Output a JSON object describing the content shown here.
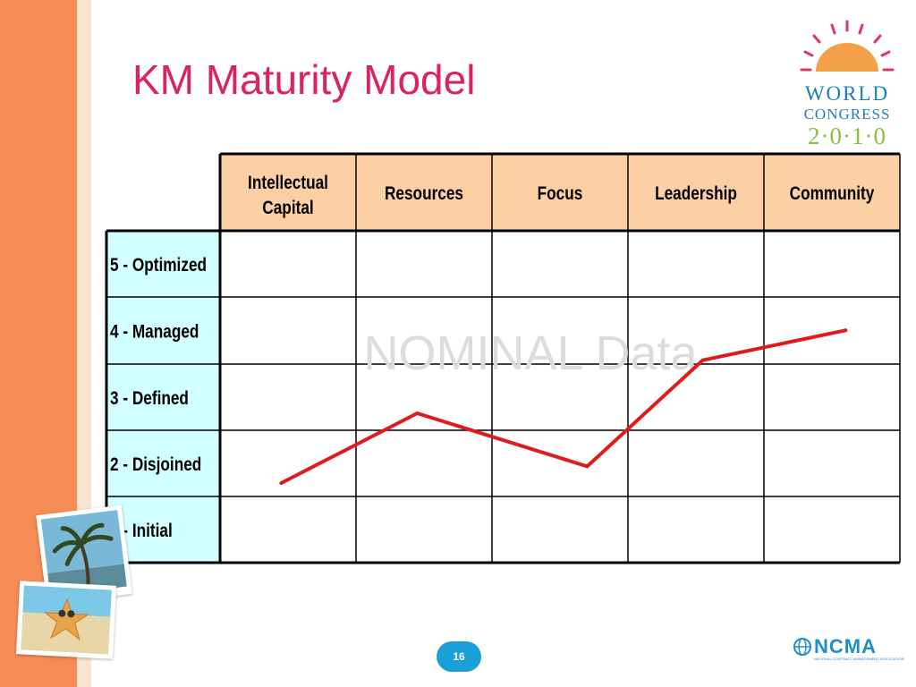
{
  "slide": {
    "title": "KM Maturity Model",
    "page_number": "16",
    "accent_color": "#d9245f",
    "side_strip_color": "#f58c55"
  },
  "logo": {
    "line1": "WORLD",
    "line2": "CONGRESS",
    "line3": "2·0·1·0",
    "sun_color": "#f2a14a",
    "text_color": "#1e7fb0",
    "year_color": "#8fbe3c"
  },
  "footer_logo": {
    "name": "NCMA",
    "tagline": "NATIONAL CONTRACT MANAGEMENT ASSOCIATION",
    "icon": "globe-icon",
    "color": "#1d8fc8"
  },
  "chart_data": {
    "type": "line",
    "categories": [
      "Intellectual Capital",
      "Resources",
      "Focus",
      "Leadership",
      "Community"
    ],
    "row_labels": [
      "5 - Optimized",
      "4 - Managed",
      "3 - Defined",
      "2 - Disjoined",
      "1 - Initial"
    ],
    "watermark": "NOMINAL Data",
    "series": [
      {
        "color": "#e01b1b",
        "points": [
          {
            "x": 0.45,
            "y": 1.7
          },
          {
            "x": 1.45,
            "y": 2.75
          },
          {
            "x": 2.7,
            "y": 1.95
          },
          {
            "x": 3.55,
            "y": 3.55
          },
          {
            "x": 4.6,
            "y": 4.0
          }
        ]
      }
    ],
    "colors": {
      "header_fill": "#fdcfa5",
      "row_label_fill": "#d2ffff",
      "grid": "#000000"
    }
  }
}
